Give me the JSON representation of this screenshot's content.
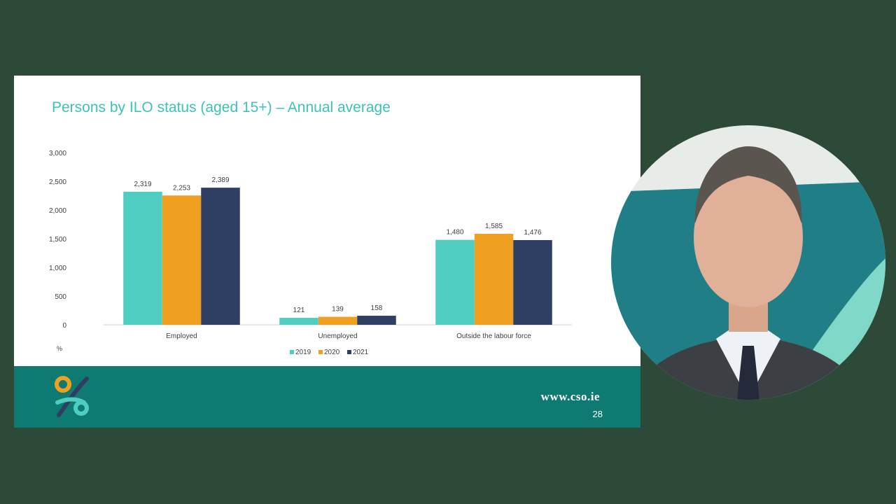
{
  "slide": {
    "title": "Persons by ILO status (aged 15+) – Annual average",
    "site_url": "www.cso.ie",
    "page_number": "28"
  },
  "chart_data": {
    "type": "bar",
    "categories": [
      "Employed",
      "Unemployed",
      "Outside the labour force"
    ],
    "series": [
      {
        "name": "2019",
        "color": "#4ecdc0",
        "values": [
          2319,
          121,
          1480
        ],
        "labels": [
          "2,319",
          "121",
          "1,480"
        ]
      },
      {
        "name": "2020",
        "color": "#f0a020",
        "values": [
          2253,
          139,
          1585
        ],
        "labels": [
          "2,253",
          "139",
          "1,585"
        ]
      },
      {
        "name": "2021",
        "color": "#2e3f63",
        "values": [
          2389,
          158,
          1476
        ],
        "labels": [
          "2,389",
          "158",
          "1,476"
        ]
      }
    ],
    "ylim": [
      0,
      3000
    ],
    "yticks": [
      0,
      500,
      1000,
      1500,
      2000,
      2500,
      3000
    ],
    "ytick_labels": [
      "0",
      "500",
      "1,000",
      "1,500",
      "2,000",
      "2,500",
      "3,000"
    ],
    "yunit": "%",
    "grid": false,
    "legend_position": "bottom"
  },
  "presenter": {
    "icon": "presenter-video-icon"
  }
}
